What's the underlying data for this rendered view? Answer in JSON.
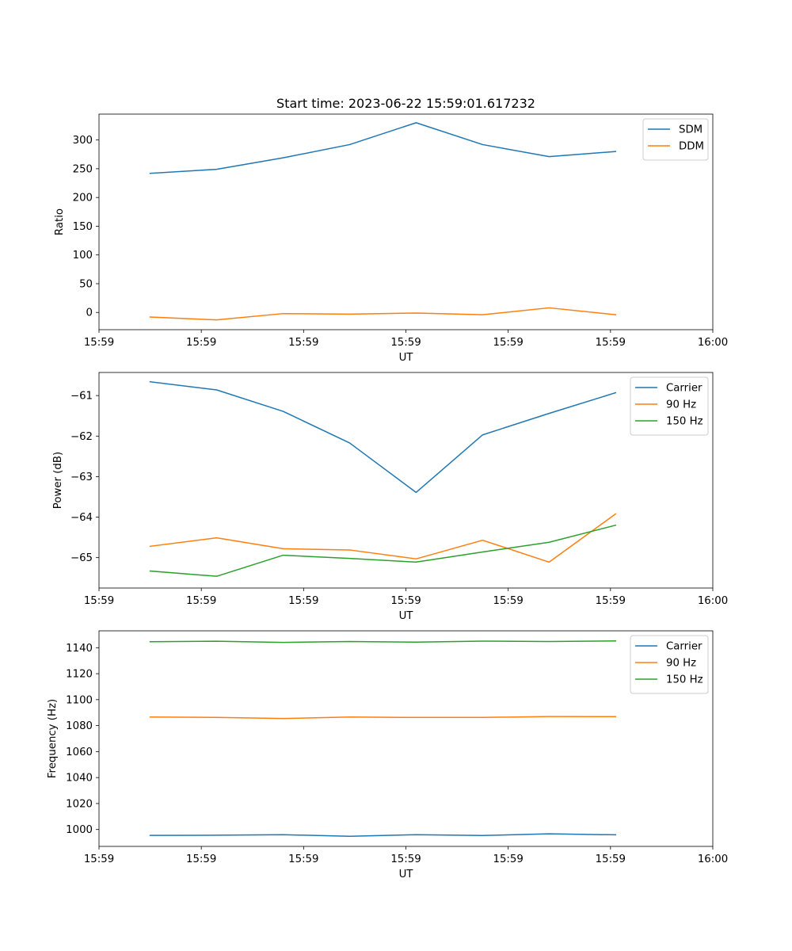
{
  "chart_data": [
    {
      "type": "line",
      "title": "Start time: 2023-06-22 15:59:01.617232",
      "xlabel": "UT",
      "ylabel": "Ratio",
      "x_seconds_from_start": [
        0.5,
        1.15,
        1.8,
        2.45,
        3.1,
        3.75,
        4.4,
        5.05
      ],
      "xlim": [
        0.0,
        6.0
      ],
      "xticks": [
        0,
        1,
        2,
        3,
        4,
        5,
        6
      ],
      "xtick_labels": [
        "15:59",
        "15:59",
        "15:59",
        "15:59",
        "15:59",
        "15:59",
        "16:00"
      ],
      "ylim": [
        -30,
        345
      ],
      "yticks": [
        0,
        50,
        100,
        150,
        200,
        250,
        300
      ],
      "ytick_labels": [
        "0",
        "50",
        "100",
        "150",
        "200",
        "250",
        "300"
      ],
      "legend_position": "top-right",
      "series": [
        {
          "name": "SDM",
          "color": "#1f77b4",
          "values": [
            242,
            249,
            269,
            292,
            330,
            292,
            271,
            280
          ]
        },
        {
          "name": "DDM",
          "color": "#ff7f0e",
          "values": [
            -8,
            -13,
            -2,
            -3,
            -1,
            -4,
            8,
            -4
          ]
        }
      ]
    },
    {
      "type": "line",
      "title": "",
      "xlabel": "UT",
      "ylabel": "Power (dB)",
      "x_seconds_from_start": [
        0.5,
        1.15,
        1.8,
        2.45,
        3.1,
        3.75,
        4.4,
        5.05
      ],
      "xlim": [
        0.0,
        6.0
      ],
      "xticks": [
        0,
        1,
        2,
        3,
        4,
        5,
        6
      ],
      "xtick_labels": [
        "15:59",
        "15:59",
        "15:59",
        "15:59",
        "15:59",
        "15:59",
        "16:00"
      ],
      "ylim": [
        -65.75,
        -60.43
      ],
      "yticks": [
        -65,
        -64,
        -63,
        -62,
        -61
      ],
      "ytick_labels": [
        "−65",
        "−64",
        "−63",
        "−62",
        "−61"
      ],
      "legend_position": "top-right",
      "series": [
        {
          "name": "Carrier",
          "color": "#1f77b4",
          "values": [
            -60.66,
            -60.86,
            -61.39,
            -62.17,
            -63.39,
            -61.97,
            -61.44,
            -60.93
          ]
        },
        {
          "name": "90 Hz",
          "color": "#ff7f0e",
          "values": [
            -64.72,
            -64.51,
            -64.78,
            -64.81,
            -65.03,
            -64.57,
            -65.11,
            -63.92
          ]
        },
        {
          "name": "150 Hz",
          "color": "#2ca02c",
          "values": [
            -65.33,
            -65.46,
            -64.94,
            -65.02,
            -65.11,
            -64.86,
            -64.62,
            -64.2
          ]
        }
      ]
    },
    {
      "type": "line",
      "title": "",
      "xlabel": "UT",
      "ylabel": "Frequency (Hz)",
      "x_seconds_from_start": [
        0.5,
        1.15,
        1.8,
        2.45,
        3.1,
        3.75,
        4.4,
        5.05
      ],
      "xlim": [
        0.0,
        6.0
      ],
      "xticks": [
        0,
        1,
        2,
        3,
        4,
        5,
        6
      ],
      "xtick_labels": [
        "15:59",
        "15:59",
        "15:59",
        "15:59",
        "15:59",
        "15:59",
        "16:00"
      ],
      "ylim": [
        987,
        1153
      ],
      "yticks": [
        1000,
        1020,
        1040,
        1060,
        1080,
        1100,
        1120,
        1140
      ],
      "ytick_labels": [
        "1000",
        "1020",
        "1040",
        "1060",
        "1080",
        "1100",
        "1120",
        "1140"
      ],
      "legend_position": "top-right",
      "series": [
        {
          "name": "Carrier",
          "color": "#1f77b4",
          "values": [
            995.5,
            995.6,
            996.0,
            994.8,
            996.0,
            995.4,
            996.7,
            995.9
          ]
        },
        {
          "name": "90 Hz",
          "color": "#ff7f0e",
          "values": [
            1086.6,
            1086.3,
            1085.5,
            1086.6,
            1086.3,
            1086.3,
            1087.0,
            1086.9
          ]
        },
        {
          "name": "150 Hz",
          "color": "#2ca02c",
          "values": [
            1144.6,
            1145.0,
            1144.1,
            1144.8,
            1144.3,
            1145.1,
            1144.8,
            1145.2
          ]
        }
      ]
    }
  ]
}
